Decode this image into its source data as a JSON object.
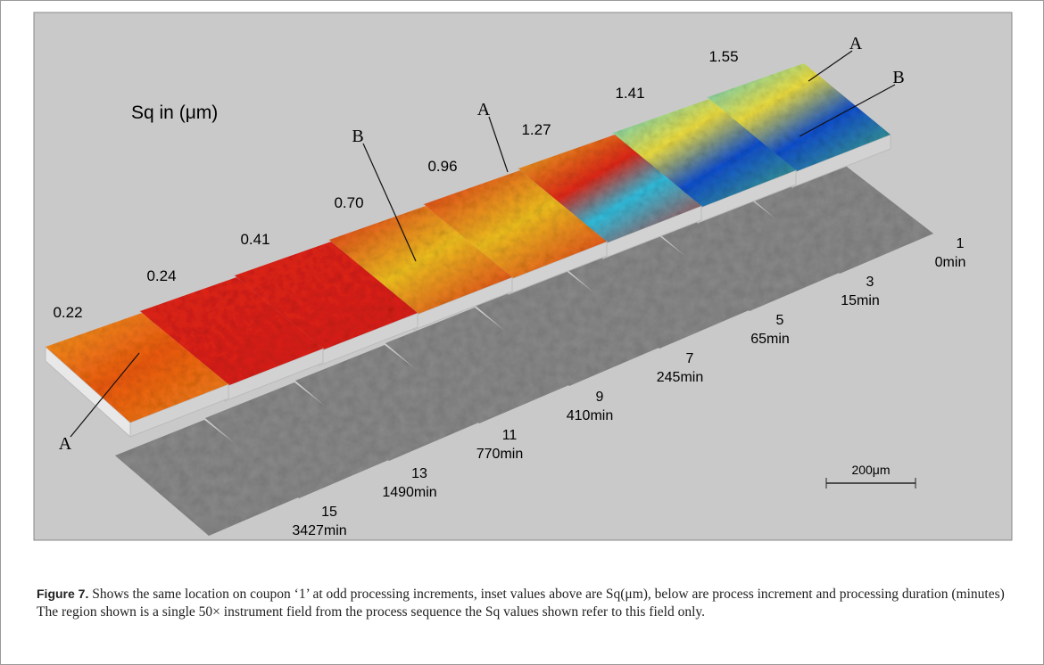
{
  "figure": {
    "sq_label": "Sq in (μm)",
    "surfaces": [
      {
        "sq": "0.22",
        "increment": "15",
        "duration": "3427min"
      },
      {
        "sq": "0.24",
        "increment": "13",
        "duration": "1490min"
      },
      {
        "sq": "0.41",
        "increment": "11",
        "duration": "770min"
      },
      {
        "sq": "0.70",
        "increment": "9",
        "duration": "410min"
      },
      {
        "sq": "0.96",
        "increment": "7",
        "duration": "245min"
      },
      {
        "sq": "1.27",
        "increment": "5",
        "duration": "65min"
      },
      {
        "sq": "1.41",
        "increment": "3",
        "duration": "15min"
      },
      {
        "sq": "1.55",
        "increment": "1",
        "duration": "0min"
      }
    ],
    "annotations": [
      "A",
      "B",
      "A",
      "A",
      "B"
    ],
    "scale_bar": "200μm"
  },
  "caption": {
    "label": "Figure 7.",
    "text": "Shows the same location on coupon ‘1’ at odd processing increments, inset values above are Sq(μm), below are process increment and processing duration (minutes) The region shown is a single 50× instrument field from the process sequence the Sq values shown refer to this field only."
  }
}
